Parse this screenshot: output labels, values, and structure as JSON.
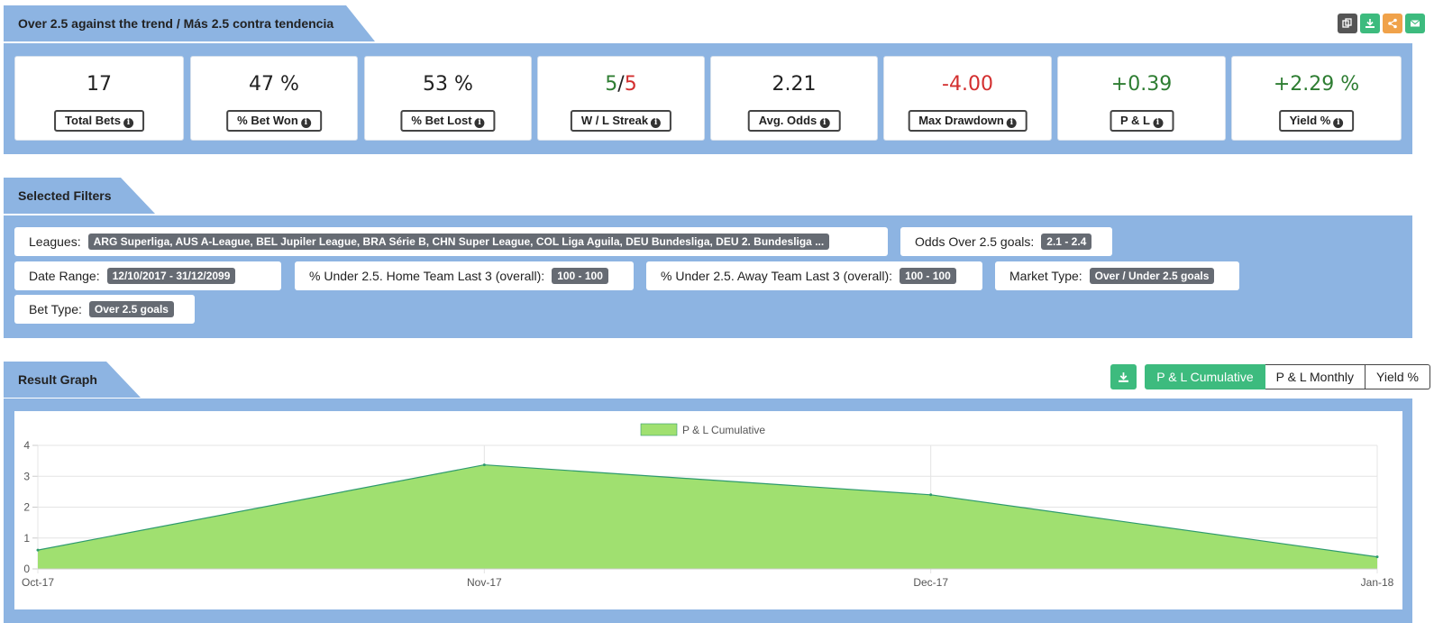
{
  "summary": {
    "title": "Over 2.5 against the trend / Más 2.5 contra tendencia",
    "tools": [
      {
        "icon": "copy-icon",
        "color": "#555555"
      },
      {
        "icon": "download-icon",
        "color": "#3dbb7e"
      },
      {
        "icon": "share-icon",
        "color": "#f0a24a"
      },
      {
        "icon": "email-icon",
        "color": "#3dbb7e"
      }
    ],
    "stats": [
      {
        "value": "17",
        "label": "Total Bets"
      },
      {
        "value": "47 %",
        "label": "% Bet Won"
      },
      {
        "value": "53 %",
        "label": "% Bet Lost"
      },
      {
        "value_won": "5",
        "value_sep": "/",
        "value_lost": "5",
        "label": "W / L Streak"
      },
      {
        "value": "2.21",
        "label": "Avg. Odds"
      },
      {
        "value": "-4.00",
        "label": "Max Drawdown"
      },
      {
        "value": "+0.39",
        "label": "P & L"
      },
      {
        "value": "+2.29 %",
        "label": "Yield %"
      }
    ],
    "colors": {
      "positive": "#2e7d32",
      "negative": "#d32f2f"
    }
  },
  "filters": {
    "title": "Selected Filters",
    "items": [
      {
        "label": "Leagues:",
        "value": "ARG Superliga, AUS A-League, BEL Jupiler League, BRA Série B, CHN Super League, COL Liga Aguila, DEU Bundesliga, DEU 2. Bundesliga ..."
      },
      {
        "label": "Odds Over 2.5 goals:",
        "value": "2.1 - 2.4"
      },
      {
        "label": "Date Range:",
        "value": "12/10/2017 - 31/12/2099"
      },
      {
        "label": "% Under 2.5. Home Team Last 3 (overall):",
        "value": "100 - 100"
      },
      {
        "label": "% Under 2.5. Away Team Last 3 (overall):",
        "value": "100 - 100"
      },
      {
        "label": "Market Type:",
        "value": "Over / Under 2.5 goals"
      },
      {
        "label": "Bet Type:",
        "value": "Over 2.5 goals"
      }
    ]
  },
  "graph": {
    "title": "Result Graph",
    "tabs": [
      "P & L Cumulative",
      "P & L Monthly",
      "Yield %"
    ],
    "active_tab": "P & L Cumulative",
    "accent": "#3dbb7e"
  },
  "chart_data": {
    "type": "area",
    "categories": [
      "Oct-17",
      "Nov-17",
      "Dec-17",
      "Jan-18"
    ],
    "series": [
      {
        "name": "P & L Cumulative",
        "values": [
          0.61,
          3.37,
          2.4,
          0.39
        ],
        "fill": "#a0e070",
        "stroke": "#2e9a6e"
      }
    ],
    "ylim": [
      0,
      4
    ],
    "yticks": [
      0,
      1,
      2,
      3,
      4
    ],
    "grid": true,
    "legend": "top-center"
  }
}
